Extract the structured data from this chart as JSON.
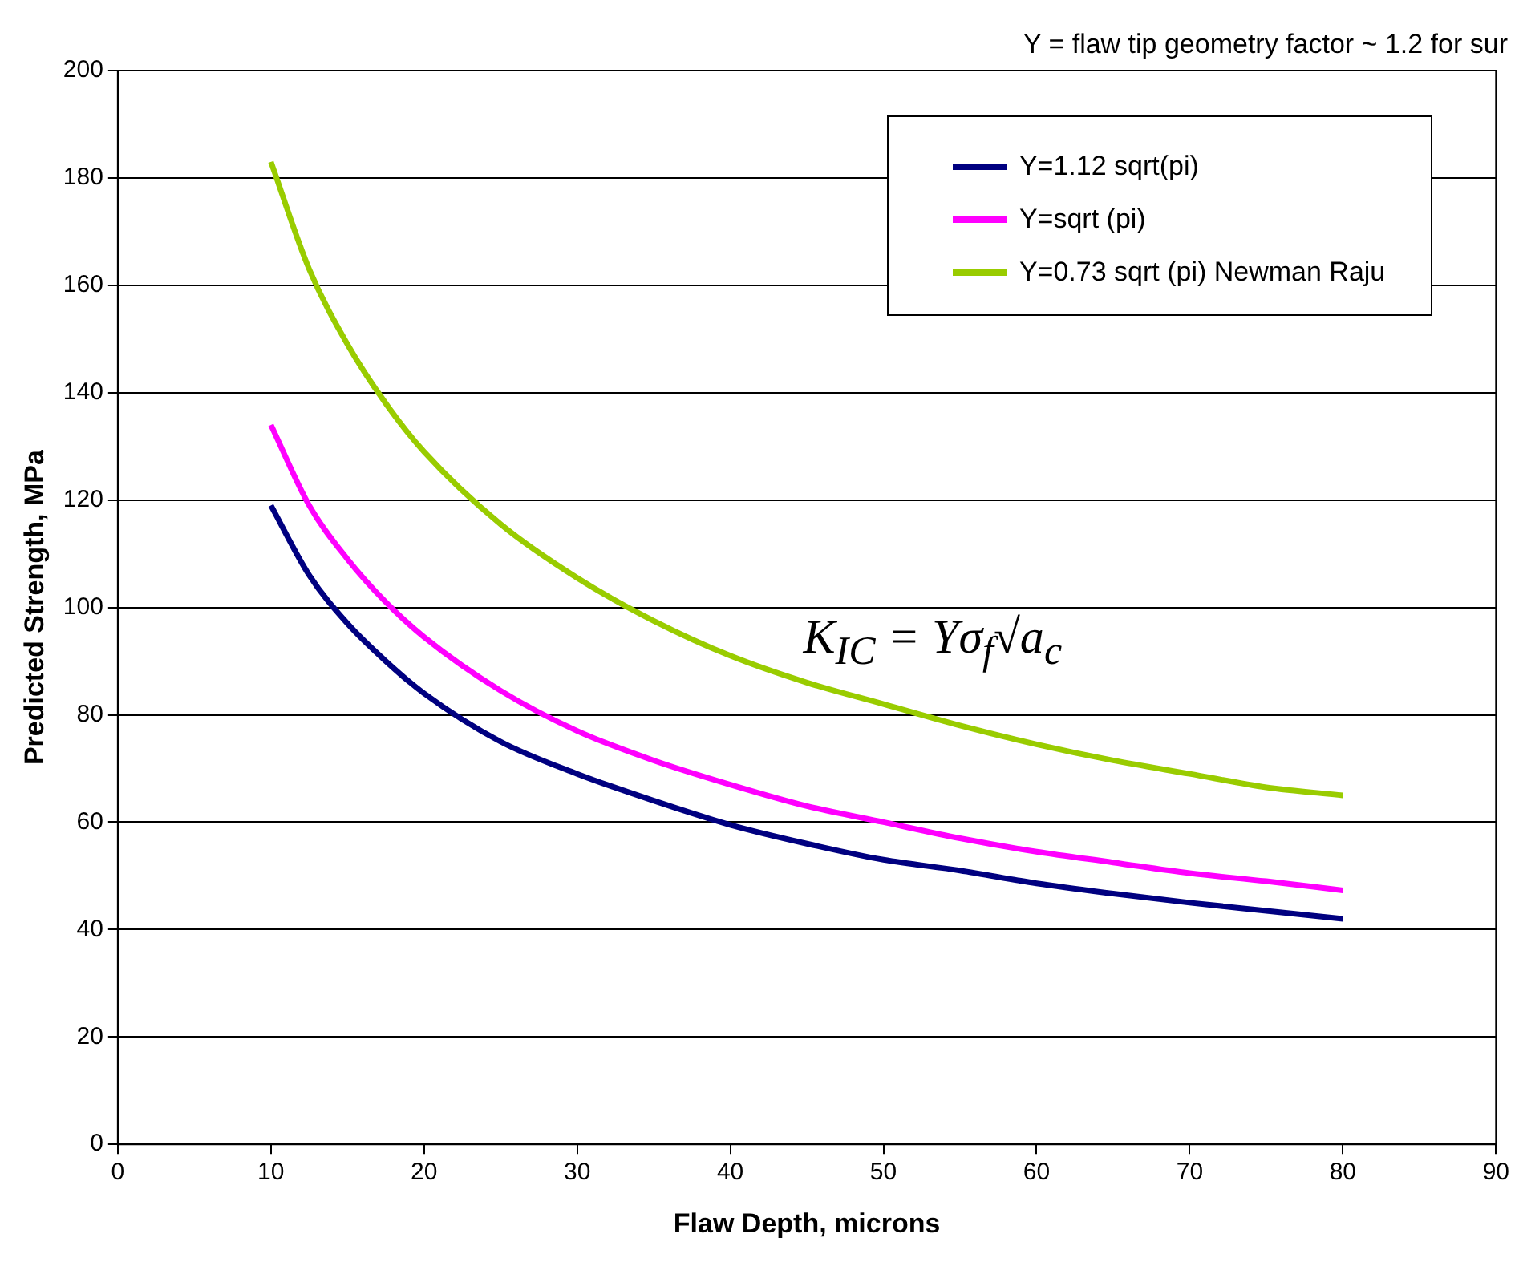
{
  "chart_data": {
    "type": "line",
    "xlabel": "Flaw Depth, microns",
    "ylabel": "Predicted Strength, MPa",
    "annotations": [
      "Y = flaw tip geometry factor ~ 1.2 for sur",
      "K$_{IC}$ = Yσ$_{f}$√a$_{c}$"
    ],
    "x": [
      10,
      12.5,
      15,
      17.5,
      20,
      25,
      30,
      35,
      40,
      45,
      50,
      55,
      60,
      65,
      70,
      75,
      80
    ],
    "series": [
      {
        "name": "Y=1.12 sqrt(pi)",
        "color": "#000080",
        "values": [
          119,
          106,
          97,
          90,
          84,
          75,
          69,
          64,
          59.5,
          56,
          53,
          51,
          48.6,
          46.7,
          45,
          43.5,
          42
        ]
      },
      {
        "name": "Y=sqrt (pi)",
        "color": "#ff00ff",
        "values": [
          134,
          119,
          109,
          101,
          94.5,
          84.5,
          77,
          71.5,
          67,
          63,
          60,
          57,
          54.5,
          52.5,
          50.5,
          49,
          47.3
        ]
      },
      {
        "name": "Y=0.73 sqrt (pi) Newman Raju",
        "color": "#99cc00",
        "values": [
          183,
          163,
          149,
          138,
          129,
          115.5,
          105.5,
          97.5,
          91,
          86,
          82,
          78,
          74.5,
          71.5,
          69,
          66.5,
          65
        ]
      }
    ],
    "xlim": [
      0,
      90
    ],
    "xticks": [
      0,
      10,
      20,
      30,
      40,
      50,
      60,
      70,
      80,
      90
    ],
    "ylim": [
      0,
      200
    ],
    "yticks": [
      0,
      20,
      40,
      60,
      80,
      100,
      120,
      140,
      160,
      180,
      200
    ],
    "grid": "y",
    "legend": "top right",
    "marker": "none",
    "line_style": "solid"
  }
}
